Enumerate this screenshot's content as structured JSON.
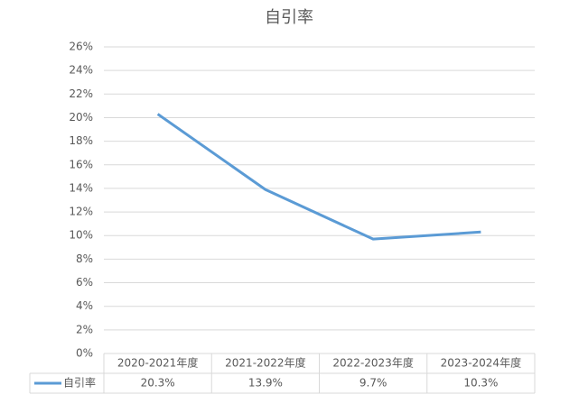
{
  "chart_data": {
    "type": "line",
    "title": "自引率",
    "categories": [
      "2020-2021年度",
      "2021-2022年度",
      "2022-2023年度",
      "2023-2024年度"
    ],
    "series": [
      {
        "name": "自引率",
        "color": "#5b9bd5",
        "values": [
          20.3,
          13.9,
          9.7,
          10.3
        ],
        "value_labels": [
          "20.3%",
          "13.9%",
          "9.7%",
          "10.3%"
        ]
      }
    ],
    "ylim": [
      0,
      26
    ],
    "yticks": [
      {
        "value": 0,
        "label": "0%"
      },
      {
        "value": 2,
        "label": "2%"
      },
      {
        "value": 4,
        "label": "4%"
      },
      {
        "value": 6,
        "label": "6%"
      },
      {
        "value": 8,
        "label": "8%"
      },
      {
        "value": 10,
        "label": "10%"
      },
      {
        "value": 12,
        "label": "12%"
      },
      {
        "value": 14,
        "label": "14%"
      },
      {
        "value": 16,
        "label": "16%"
      },
      {
        "value": 18,
        "label": "18%"
      },
      {
        "value": 20,
        "label": "20%"
      },
      {
        "value": 22,
        "label": "22%"
      },
      {
        "value": 24,
        "label": "24%"
      },
      {
        "value": 26,
        "label": "26%"
      }
    ],
    "grid": true,
    "data_table": true
  }
}
